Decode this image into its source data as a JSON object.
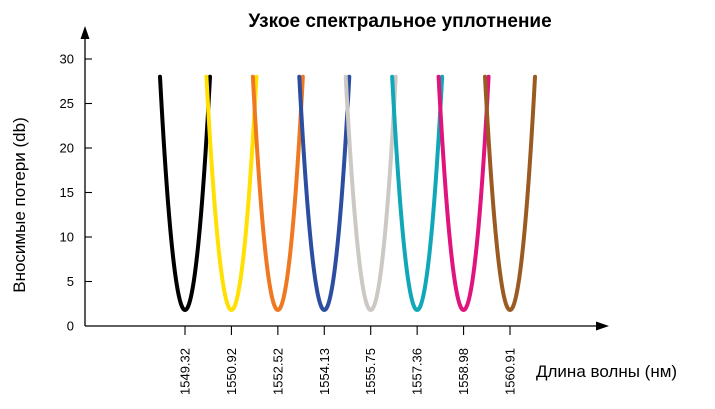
{
  "chart_data": {
    "type": "line",
    "title": "Узкое спектральное уплотнение",
    "xlabel": "Длина волны (нм)",
    "ylabel": "Вносимые потери (db)",
    "ylim": [
      0,
      30
    ],
    "yticks": [
      0,
      5,
      10,
      15,
      20,
      25,
      30
    ],
    "categories": [
      "1549.32",
      "1550.92",
      "1552.52",
      "1554.13",
      "1555.75",
      "1557.36",
      "1558.98",
      "1560.91"
    ],
    "grid": false,
    "series": [
      {
        "center": "1549.32",
        "color": "#000000",
        "min_loss": 1.8,
        "max_loss": 28
      },
      {
        "center": "1550.92",
        "color": "#FFE000",
        "min_loss": 1.8,
        "max_loss": 28
      },
      {
        "center": "1552.52",
        "color": "#F07820",
        "min_loss": 1.8,
        "max_loss": 28
      },
      {
        "center": "1554.13",
        "color": "#2B4EA0",
        "min_loss": 1.8,
        "max_loss": 28
      },
      {
        "center": "1555.75",
        "color": "#CCC8C4",
        "min_loss": 1.8,
        "max_loss": 28
      },
      {
        "center": "1557.36",
        "color": "#10A8B8",
        "min_loss": 1.8,
        "max_loss": 28
      },
      {
        "center": "1558.98",
        "color": "#E0147C",
        "min_loss": 1.8,
        "max_loss": 28
      },
      {
        "center": "1560.91",
        "color": "#9A5A22",
        "min_loss": 1.8,
        "max_loss": 28
      }
    ]
  }
}
